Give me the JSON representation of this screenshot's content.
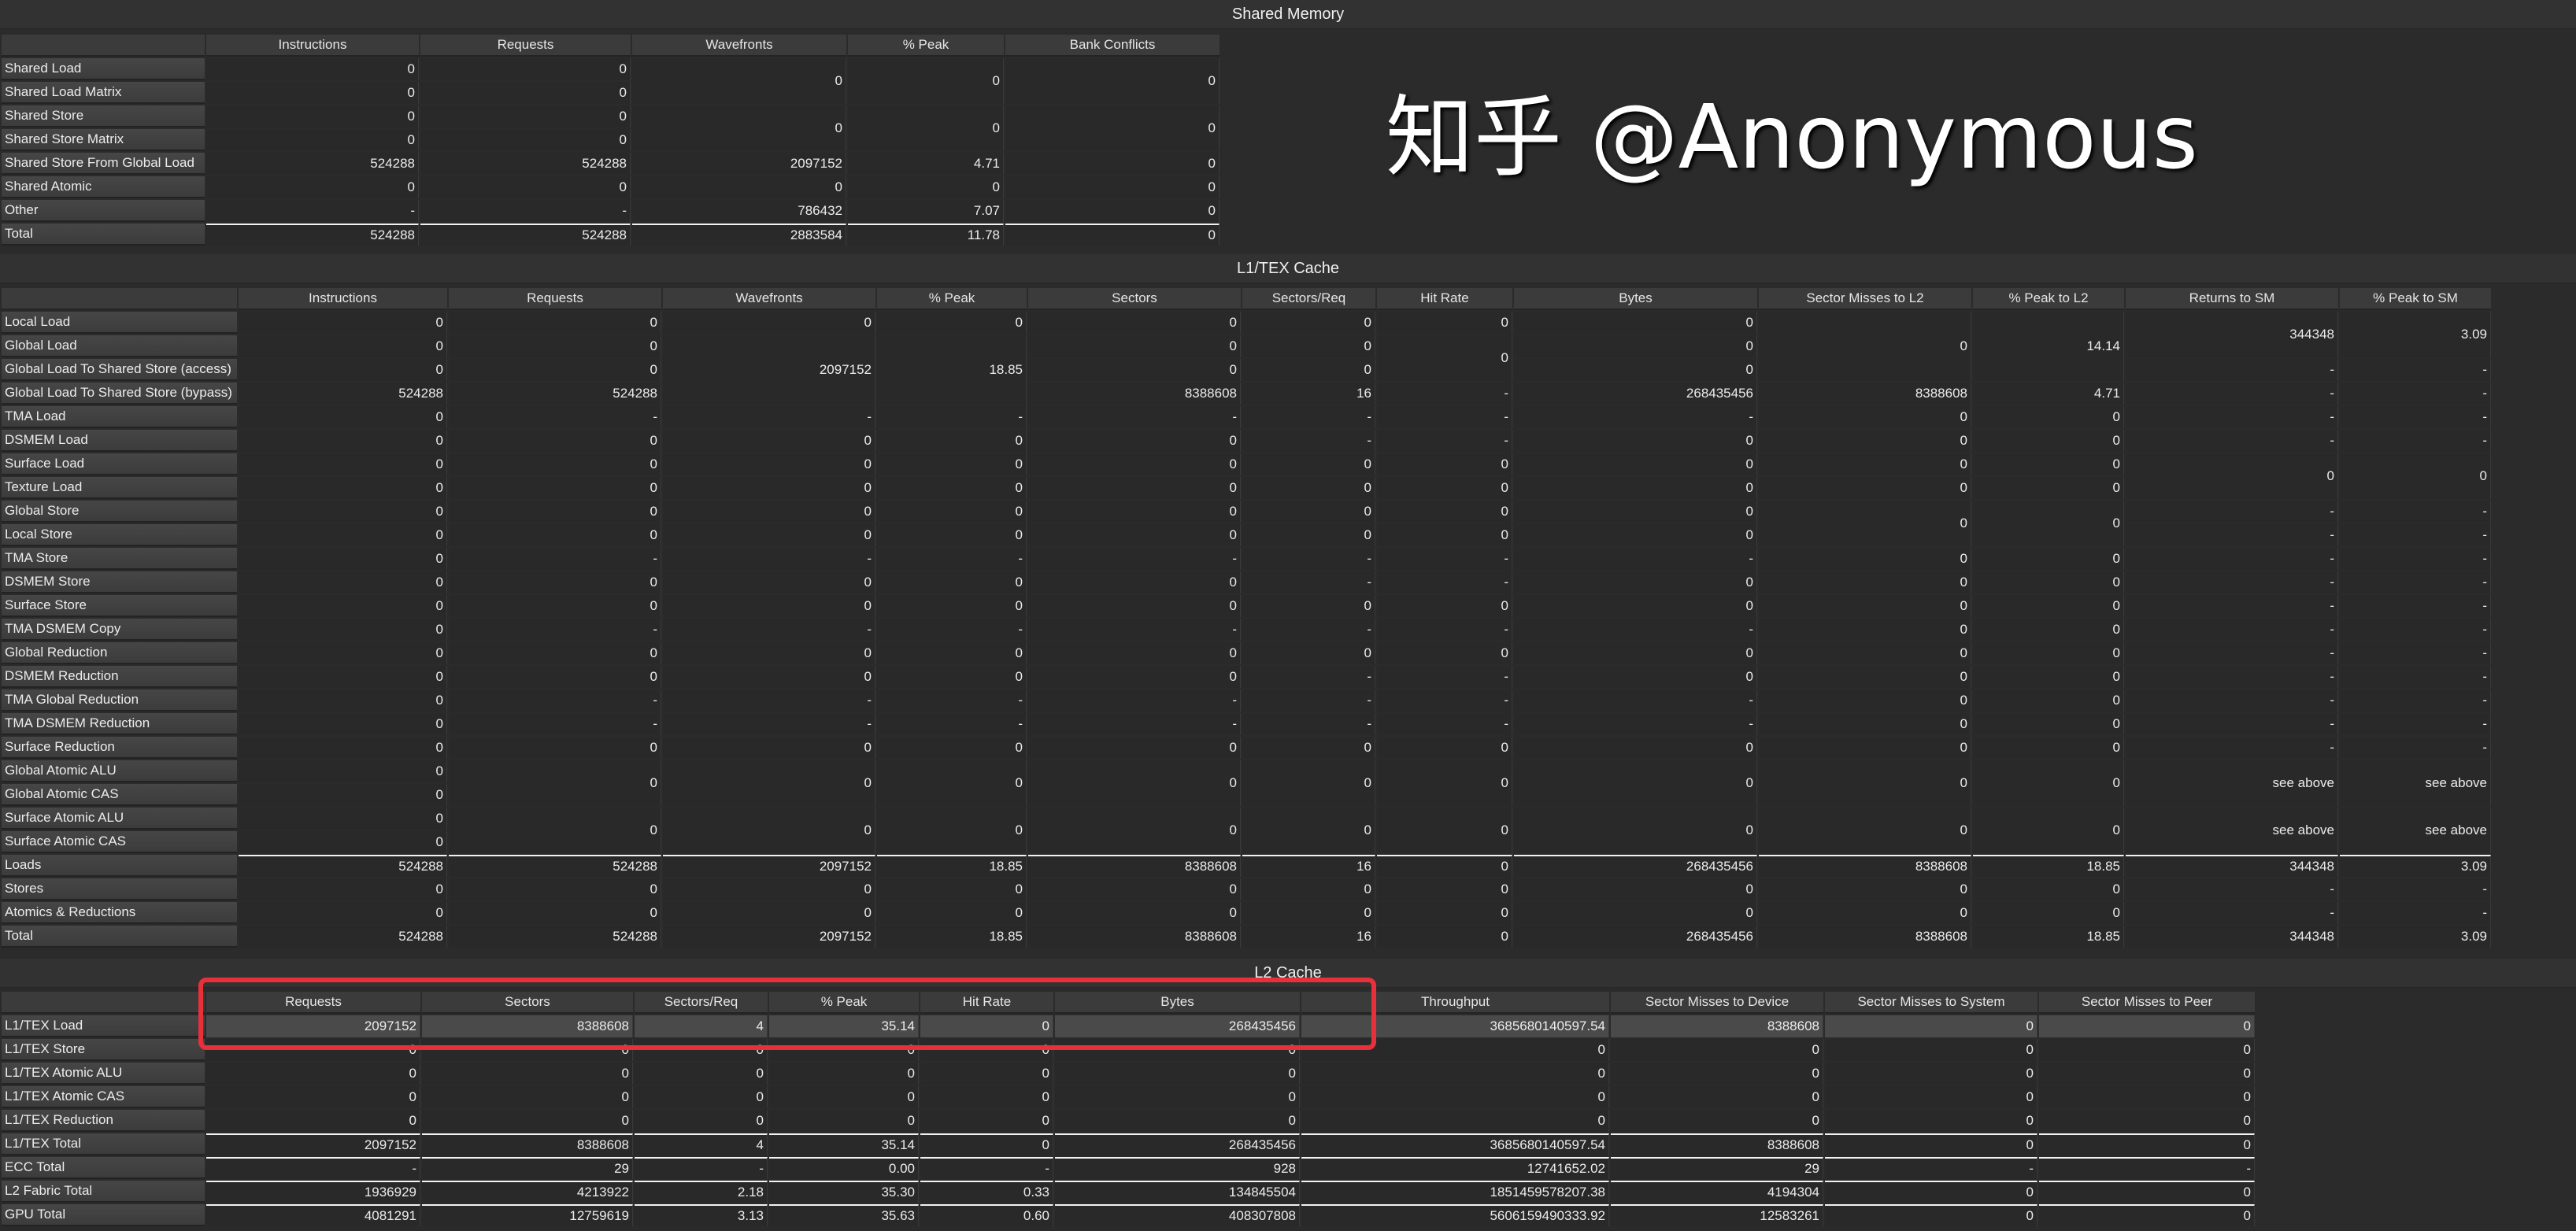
{
  "shared_memory": {
    "title": "Shared Memory",
    "columns": [
      "Instructions",
      "Requests",
      "Wavefronts",
      "% Peak",
      "Bank Conflicts"
    ],
    "rows": [
      {
        "label": "Shared Load",
        "cells": [
          "0",
          "0",
          {
            "v": "0",
            "rs": 2
          },
          {
            "v": "0",
            "rs": 2
          },
          {
            "v": "0",
            "rs": 2
          }
        ]
      },
      {
        "label": "Shared Load Matrix",
        "cells": [
          "0",
          "0",
          null,
          null,
          null
        ]
      },
      {
        "label": "Shared Store",
        "cells": [
          "0",
          "0",
          {
            "v": "0",
            "rs": 2
          },
          {
            "v": "0",
            "rs": 2
          },
          {
            "v": "0",
            "rs": 2
          }
        ]
      },
      {
        "label": "Shared Store Matrix",
        "cells": [
          "0",
          "0",
          null,
          null,
          null
        ]
      },
      {
        "label": "Shared Store From Global Load",
        "cells": [
          "524288",
          "524288",
          "2097152",
          "4.71",
          "0"
        ]
      },
      {
        "label": "Shared Atomic",
        "cells": [
          "0",
          "0",
          "0",
          "0",
          "0"
        ]
      },
      {
        "label": "Other",
        "cells": [
          "-",
          "-",
          "786432",
          "7.07",
          "0"
        ]
      },
      {
        "label": "Total",
        "total": true,
        "cells": [
          "524288",
          "524288",
          "2883584",
          "11.78",
          "0"
        ]
      }
    ]
  },
  "l1tex_cache": {
    "title": "L1/TEX Cache",
    "columns": [
      "Instructions",
      "Requests",
      "Wavefronts",
      "% Peak",
      "Sectors",
      "Sectors/Req",
      "Hit Rate",
      "Bytes",
      "Sector Misses to L2",
      "% Peak to L2",
      "Returns to SM",
      "% Peak to SM"
    ],
    "rows": [
      {
        "label": "Local Load",
        "cells": [
          "0",
          "0",
          "0",
          "0",
          "0",
          "0",
          "0",
          "0",
          {
            "v": "0",
            "rs": 3
          },
          {
            "v": "14.14",
            "rs": 3
          },
          {
            "v": "344348",
            "rs": 2
          },
          {
            "v": "3.09",
            "rs": 2
          }
        ]
      },
      {
        "label": "Global Load",
        "cells": [
          "0",
          "0",
          {
            "v": "2097152",
            "rs": 3
          },
          {
            "v": "18.85",
            "rs": 3
          },
          "0",
          "0",
          {
            "v": "0",
            "rs": 2
          },
          "0",
          null,
          null,
          null,
          null
        ]
      },
      {
        "label": "Global Load To Shared Store (access)",
        "cells": [
          "0",
          "0",
          null,
          null,
          "0",
          "0",
          null,
          "0",
          null,
          null,
          "-",
          "-"
        ]
      },
      {
        "label": "Global Load To Shared Store (bypass)",
        "cells": [
          "524288",
          "524288",
          null,
          null,
          "8388608",
          "16",
          "-",
          "268435456",
          "8388608",
          "4.71",
          "-",
          "-"
        ]
      },
      {
        "label": "TMA Load",
        "cells": [
          "0",
          "-",
          "-",
          "-",
          "-",
          "-",
          "-",
          "-",
          "0",
          "0",
          "-",
          "-"
        ]
      },
      {
        "label": "DSMEM Load",
        "cells": [
          "0",
          "0",
          "0",
          "0",
          "0",
          "-",
          "-",
          "0",
          "0",
          "0",
          "-",
          "-"
        ]
      },
      {
        "label": "Surface Load",
        "cells": [
          "0",
          "0",
          "0",
          "0",
          "0",
          "0",
          "0",
          "0",
          "0",
          "0",
          {
            "v": "0",
            "rs": 2
          },
          {
            "v": "0",
            "rs": 2
          }
        ]
      },
      {
        "label": "Texture Load",
        "cells": [
          "0",
          "0",
          "0",
          "0",
          "0",
          "0",
          "0",
          "0",
          "0",
          "0",
          null,
          null
        ]
      },
      {
        "label": "Global Store",
        "cells": [
          "0",
          "0",
          "0",
          "0",
          "0",
          "0",
          "0",
          "0",
          {
            "v": "0",
            "rs": 2
          },
          {
            "v": "0",
            "rs": 2
          },
          "-",
          "-"
        ]
      },
      {
        "label": "Local Store",
        "cells": [
          "0",
          "0",
          "0",
          "0",
          "0",
          "0",
          "0",
          "0",
          null,
          null,
          "-",
          "-"
        ]
      },
      {
        "label": "TMA Store",
        "cells": [
          "0",
          "-",
          "-",
          "-",
          "-",
          "-",
          "-",
          "-",
          "0",
          "0",
          "-",
          "-"
        ]
      },
      {
        "label": "DSMEM Store",
        "cells": [
          "0",
          "0",
          "0",
          "0",
          "0",
          "-",
          "-",
          "0",
          "0",
          "0",
          "-",
          "-"
        ]
      },
      {
        "label": "Surface Store",
        "cells": [
          "0",
          "0",
          "0",
          "0",
          "0",
          "0",
          "0",
          "0",
          "0",
          "0",
          "-",
          "-"
        ]
      },
      {
        "label": "TMA DSMEM Copy",
        "cells": [
          "0",
          "-",
          "-",
          "-",
          "-",
          "-",
          "-",
          "-",
          "0",
          "0",
          "-",
          "-"
        ]
      },
      {
        "label": "Global Reduction",
        "cells": [
          "0",
          "0",
          "0",
          "0",
          "0",
          "0",
          "0",
          "0",
          "0",
          "0",
          "-",
          "-"
        ]
      },
      {
        "label": "DSMEM Reduction",
        "cells": [
          "0",
          "0",
          "0",
          "0",
          "0",
          "-",
          "-",
          "0",
          "0",
          "0",
          "-",
          "-"
        ]
      },
      {
        "label": "TMA Global Reduction",
        "cells": [
          "0",
          "-",
          "-",
          "-",
          "-",
          "-",
          "-",
          "-",
          "0",
          "0",
          "-",
          "-"
        ]
      },
      {
        "label": "TMA DSMEM Reduction",
        "cells": [
          "0",
          "-",
          "-",
          "-",
          "-",
          "-",
          "-",
          "-",
          "0",
          "0",
          "-",
          "-"
        ]
      },
      {
        "label": "Surface Reduction",
        "cells": [
          "0",
          "0",
          "0",
          "0",
          "0",
          "0",
          "0",
          "0",
          "0",
          "0",
          "-",
          "-"
        ]
      },
      {
        "label": "Global Atomic ALU",
        "cells": [
          "0",
          {
            "v": "0",
            "rs": 2
          },
          {
            "v": "0",
            "rs": 2
          },
          {
            "v": "0",
            "rs": 2
          },
          {
            "v": "0",
            "rs": 2
          },
          {
            "v": "0",
            "rs": 2
          },
          {
            "v": "0",
            "rs": 2
          },
          {
            "v": "0",
            "rs": 2
          },
          {
            "v": "0",
            "rs": 2
          },
          {
            "v": "0",
            "rs": 2
          },
          {
            "v": "see above",
            "rs": 2
          },
          {
            "v": "see above",
            "rs": 2
          }
        ]
      },
      {
        "label": "Global Atomic CAS",
        "cells": [
          "0",
          null,
          null,
          null,
          null,
          null,
          null,
          null,
          null,
          null,
          null,
          null
        ]
      },
      {
        "label": "Surface Atomic ALU",
        "cells": [
          "0",
          {
            "v": "0",
            "rs": 2
          },
          {
            "v": "0",
            "rs": 2
          },
          {
            "v": "0",
            "rs": 2
          },
          {
            "v": "0",
            "rs": 2
          },
          {
            "v": "0",
            "rs": 2
          },
          {
            "v": "0",
            "rs": 2
          },
          {
            "v": "0",
            "rs": 2
          },
          {
            "v": "0",
            "rs": 2
          },
          {
            "v": "0",
            "rs": 2
          },
          {
            "v": "see above",
            "rs": 2
          },
          {
            "v": "see above",
            "rs": 2
          }
        ]
      },
      {
        "label": "Surface Atomic CAS",
        "cells": [
          "0",
          null,
          null,
          null,
          null,
          null,
          null,
          null,
          null,
          null,
          null,
          null
        ]
      },
      {
        "label": "Loads",
        "total": true,
        "cells": [
          "524288",
          "524288",
          "2097152",
          "18.85",
          "8388608",
          "16",
          "0",
          "268435456",
          "8388608",
          "18.85",
          "344348",
          "3.09"
        ]
      },
      {
        "label": "Stores",
        "cells": [
          "0",
          "0",
          "0",
          "0",
          "0",
          "0",
          "0",
          "0",
          "0",
          "0",
          "-",
          "-"
        ]
      },
      {
        "label": "Atomics & Reductions",
        "cells": [
          "0",
          "0",
          "0",
          "0",
          "0",
          "0",
          "0",
          "0",
          "0",
          "0",
          "-",
          "-"
        ]
      },
      {
        "label": "Total",
        "cells": [
          "524288",
          "524288",
          "2097152",
          "18.85",
          "8388608",
          "16",
          "0",
          "268435456",
          "8388608",
          "18.85",
          "344348",
          "3.09"
        ]
      }
    ]
  },
  "l2_cache": {
    "title": "L2 Cache",
    "columns": [
      "Requests",
      "Sectors",
      "Sectors/Req",
      "% Peak",
      "Hit Rate",
      "Bytes",
      "Throughput",
      "Sector Misses to Device",
      "Sector Misses to System",
      "Sector Misses to Peer"
    ],
    "rows": [
      {
        "label": "L1/TEX Load",
        "highlighted": true,
        "cells": [
          "2097152",
          "8388608",
          "4",
          "35.14",
          "0",
          "268435456",
          "3685680140597.54",
          "8388608",
          "0",
          "0"
        ]
      },
      {
        "label": "L1/TEX Store",
        "cells": [
          "0",
          "0",
          "0",
          "0",
          "0",
          "0",
          "0",
          "0",
          "0",
          "0"
        ]
      },
      {
        "label": "L1/TEX Atomic ALU",
        "cells": [
          "0",
          "0",
          "0",
          "0",
          "0",
          "0",
          "0",
          "0",
          "0",
          "0"
        ]
      },
      {
        "label": "L1/TEX Atomic CAS",
        "cells": [
          "0",
          "0",
          "0",
          "0",
          "0",
          "0",
          "0",
          "0",
          "0",
          "0"
        ]
      },
      {
        "label": "L1/TEX Reduction",
        "cells": [
          "0",
          "0",
          "0",
          "0",
          "0",
          "0",
          "0",
          "0",
          "0",
          "0"
        ]
      },
      {
        "label": "L1/TEX Total",
        "total": true,
        "cells": [
          "2097152",
          "8388608",
          "4",
          "35.14",
          "0",
          "268435456",
          "3685680140597.54",
          "8388608",
          "0",
          "0"
        ]
      },
      {
        "label": "ECC Total",
        "total": true,
        "cells": [
          "-",
          "29",
          "-",
          "0.00",
          "-",
          "928",
          "12741652.02",
          "29",
          "-",
          "-"
        ]
      },
      {
        "label": "L2 Fabric Total",
        "total": true,
        "cells": [
          "1936929",
          "4213922",
          "2.18",
          "35.30",
          "0.33",
          "134845504",
          "1851459578207.38",
          "4194304",
          "0",
          "0"
        ]
      },
      {
        "label": "GPU Total",
        "total": true,
        "cells": [
          "4081291",
          "12759619",
          "3.13",
          "35.63",
          "0.60",
          "408307808",
          "5606159490333.92",
          "12583261",
          "0",
          "0"
        ]
      }
    ]
  },
  "annotation": {
    "highlight_color": "#e8303a"
  },
  "watermark": {
    "brand": "知乎",
    "handle": "@Anonymous"
  }
}
